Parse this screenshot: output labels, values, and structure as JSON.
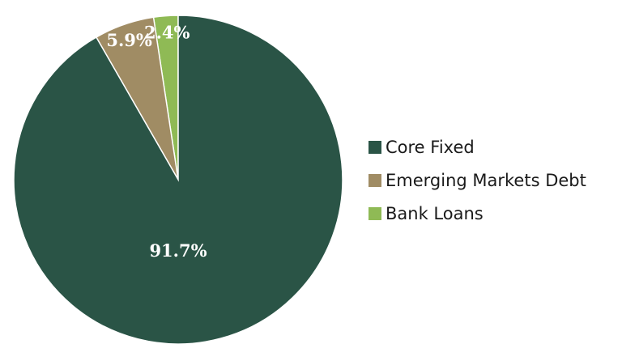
{
  "chart_data": {
    "type": "pie",
    "slices": [
      {
        "label": "Core Fixed",
        "value": 91.7,
        "value_label": "91.7%",
        "color": "#2a5446"
      },
      {
        "label": "Emerging Markets Debt",
        "value": 5.9,
        "value_label": "5.9%",
        "color": "#a08c64"
      },
      {
        "label": "Bank Loans",
        "value": 2.4,
        "value_label": "2.4%",
        "color": "#8fba55"
      }
    ],
    "legend_position": "right",
    "start_angle": "top, clockwise, last slice first"
  }
}
